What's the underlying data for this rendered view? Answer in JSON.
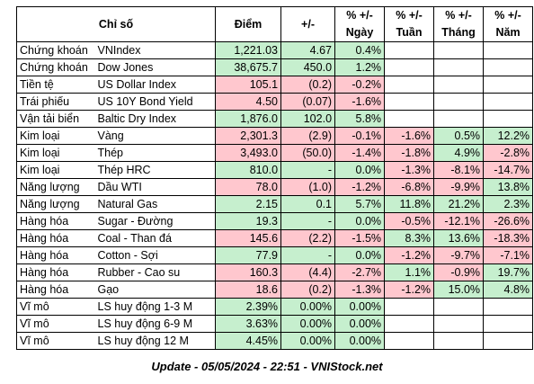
{
  "headers": {
    "category": "Chỉ số",
    "price": "Điểm",
    "change": "+/-",
    "pct": "% +/-",
    "day": "Ngày",
    "week": "Tuần",
    "month": "Tháng",
    "year": "Năm"
  },
  "rows": [
    {
      "cat": "Chứng khoán",
      "name": "VNIndex",
      "price": "1,221.03",
      "change": "4.67",
      "day": "0.4%",
      "week": "",
      "month": "",
      "year": "",
      "c": [
        "g",
        "g",
        "g",
        "g",
        "w",
        "w",
        "w"
      ]
    },
    {
      "cat": "Chứng khoán",
      "name": "Dow Jones",
      "price": "38,675.7",
      "change": "450.0",
      "day": "1.2%",
      "week": "",
      "month": "",
      "year": "",
      "c": [
        "g",
        "g",
        "g",
        "g",
        "w",
        "w",
        "w"
      ]
    },
    {
      "cat": "Tiền tệ",
      "name": "US Dollar Index",
      "price": "105.1",
      "change": "(0.2)",
      "day": "-0.2%",
      "week": "",
      "month": "",
      "year": "",
      "c": [
        "r",
        "r",
        "r",
        "r",
        "w",
        "w",
        "w"
      ]
    },
    {
      "cat": "Trái phiếu",
      "name": "US 10Y Bond Yield",
      "price": "4.50",
      "change": "(0.07)",
      "day": "-1.6%",
      "week": "",
      "month": "",
      "year": "",
      "c": [
        "r",
        "r",
        "r",
        "r",
        "w",
        "w",
        "w"
      ]
    },
    {
      "cat": "Vận tải biển",
      "name": "Baltic Dry Index",
      "price": "1,876.0",
      "change": "102.0",
      "day": "5.8%",
      "week": "",
      "month": "",
      "year": "",
      "c": [
        "g",
        "g",
        "g",
        "g",
        "w",
        "w",
        "w"
      ]
    },
    {
      "cat": "Kim loại",
      "name": "Vàng",
      "price": "2,301.3",
      "change": "(2.9)",
      "day": "-0.1%",
      "week": "-1.6%",
      "month": "0.5%",
      "year": "12.2%",
      "c": [
        "r",
        "r",
        "r",
        "r",
        "r",
        "g",
        "g"
      ]
    },
    {
      "cat": "Kim loại",
      "name": "Thép",
      "price": "3,493.0",
      "change": "(50.0)",
      "day": "-1.4%",
      "week": "-1.8%",
      "month": "4.9%",
      "year": "-2.8%",
      "c": [
        "r",
        "r",
        "r",
        "r",
        "r",
        "g",
        "r"
      ]
    },
    {
      "cat": "Kim loại",
      "name": "Thép HRC",
      "price": "810.0",
      "change": "-",
      "day": "0.0%",
      "week": "-1.3%",
      "month": "-8.1%",
      "year": "-14.7%",
      "c": [
        "g",
        "g",
        "g",
        "g",
        "r",
        "r",
        "r"
      ]
    },
    {
      "cat": "Năng lượng",
      "name": "Dầu WTI",
      "price": "78.0",
      "change": "(1.0)",
      "day": "-1.2%",
      "week": "-6.8%",
      "month": "-9.9%",
      "year": "13.8%",
      "c": [
        "r",
        "r",
        "r",
        "r",
        "r",
        "r",
        "g"
      ]
    },
    {
      "cat": "Năng lượng",
      "name": "Natural Gas",
      "price": "2.15",
      "change": "0.1",
      "day": "5.7%",
      "week": "11.8%",
      "month": "21.2%",
      "year": "2.3%",
      "c": [
        "g",
        "g",
        "g",
        "g",
        "g",
        "g",
        "g"
      ]
    },
    {
      "cat": "Hàng hóa",
      "name": "Sugar - Đường",
      "price": "19.3",
      "change": "-",
      "day": "0.0%",
      "week": "-0.5%",
      "month": "-12.1%",
      "year": "-26.6%",
      "c": [
        "g",
        "g",
        "g",
        "g",
        "r",
        "r",
        "r"
      ]
    },
    {
      "cat": "Hàng hóa",
      "name": "Coal - Than đá",
      "price": "145.6",
      "change": "(2.2)",
      "day": "-1.5%",
      "week": "8.3%",
      "month": "13.6%",
      "year": "-18.3%",
      "c": [
        "r",
        "r",
        "r",
        "r",
        "g",
        "g",
        "r"
      ]
    },
    {
      "cat": "Hàng hóa",
      "name": "Cotton - Sợi",
      "price": "77.9",
      "change": "-",
      "day": "0.0%",
      "week": "-1.2%",
      "month": "-9.7%",
      "year": "-7.1%",
      "c": [
        "g",
        "g",
        "g",
        "g",
        "r",
        "r",
        "r"
      ]
    },
    {
      "cat": "Hàng hóa",
      "name": "Rubber - Cao su",
      "price": "160.3",
      "change": "(4.4)",
      "day": "-2.7%",
      "week": "1.1%",
      "month": "-0.9%",
      "year": "19.7%",
      "c": [
        "r",
        "r",
        "r",
        "r",
        "g",
        "r",
        "g"
      ]
    },
    {
      "cat": "Hàng hóa",
      "name": "Gạo",
      "price": "18.6",
      "change": "(0.2)",
      "day": "-1.3%",
      "week": "-1.2%",
      "month": "15.0%",
      "year": "4.8%",
      "c": [
        "r",
        "r",
        "r",
        "r",
        "r",
        "g",
        "g"
      ]
    },
    {
      "cat": "Vĩ mô",
      "name": "LS huy động 1-3 M",
      "price": "2.39%",
      "change": "0.00%",
      "day": "0.00%",
      "week": "",
      "month": "",
      "year": "",
      "c": [
        "g",
        "g",
        "g",
        "g",
        "w",
        "w",
        "w"
      ]
    },
    {
      "cat": "Vĩ mô",
      "name": "LS huy động 6-9 M",
      "price": "3.63%",
      "change": "0.00%",
      "day": "0.00%",
      "week": "",
      "month": "",
      "year": "",
      "c": [
        "g",
        "g",
        "g",
        "g",
        "w",
        "w",
        "w"
      ]
    },
    {
      "cat": "Vĩ mô",
      "name": "LS huy động 12 M",
      "price": "4.45%",
      "change": "0.00%",
      "day": "0.00%",
      "week": "",
      "month": "",
      "year": "",
      "c": [
        "g",
        "g",
        "g",
        "g",
        "w",
        "w",
        "w"
      ]
    }
  ],
  "footer": "Update - 05/05/2024 - 22:51 - VNIStock.net"
}
